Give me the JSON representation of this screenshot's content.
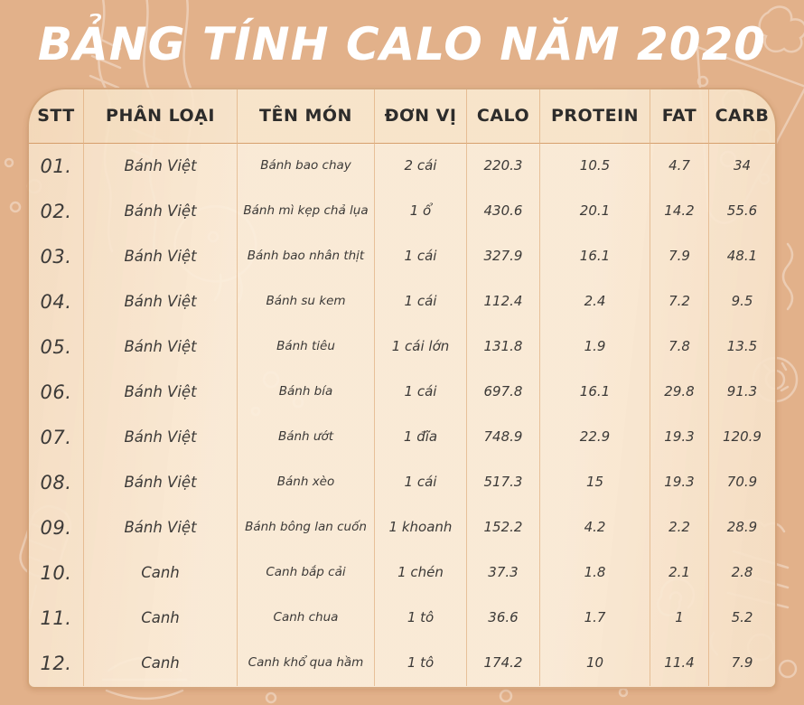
{
  "title": "BẢNG TÍNH CALO NĂM 2020",
  "colors": {
    "background": "#e2b18a",
    "panel": "#fbeeda",
    "panel_edge": "#f5dfc5",
    "panel_border": "#ba743e",
    "divider": "#d99e68",
    "title_text": "#ffffff",
    "header_text": "#2d2c2b",
    "body_text": "#3c3a38"
  },
  "table": {
    "columns": [
      "STT",
      "PHÂN LOẠI",
      "TÊN MÓN",
      "ĐƠN VỊ",
      "CALO",
      "PROTEIN",
      "FAT",
      "CARB"
    ],
    "rows": [
      [
        "01.",
        "Bánh Việt",
        "Bánh bao chay",
        "2 cái",
        "220.3",
        "10.5",
        "4.7",
        "34"
      ],
      [
        "02.",
        "Bánh Việt",
        "Bánh mì kẹp chả lụa",
        "1 ổ",
        "430.6",
        "20.1",
        "14.2",
        "55.6"
      ],
      [
        "03.",
        "Bánh Việt",
        "Bánh bao nhân thịt",
        "1 cái",
        "327.9",
        "16.1",
        "7.9",
        "48.1"
      ],
      [
        "04.",
        "Bánh Việt",
        "Bánh su kem",
        "1 cái",
        "112.4",
        "2.4",
        "7.2",
        "9.5"
      ],
      [
        "05.",
        "Bánh Việt",
        "Bánh tiêu",
        "1 cái lớn",
        "131.8",
        "1.9",
        "7.8",
        "13.5"
      ],
      [
        "06.",
        "Bánh Việt",
        "Bánh bía",
        "1 cái",
        "697.8",
        "16.1",
        "29.8",
        "91.3"
      ],
      [
        "07.",
        "Bánh Việt",
        "Bánh ướt",
        "1 đĩa",
        "748.9",
        "22.9",
        "19.3",
        "120.9"
      ],
      [
        "08.",
        "Bánh Việt",
        "Bánh xèo",
        "1 cái",
        "517.3",
        "15",
        "19.3",
        "70.9"
      ],
      [
        "09.",
        "Bánh Việt",
        "Bánh bông lan cuốn",
        "1 khoanh",
        "152.2",
        "4.2",
        "2.2",
        "28.9"
      ],
      [
        "10.",
        "Canh",
        "Canh bắp cải",
        "1 chén",
        "37.3",
        "1.8",
        "2.1",
        "2.8"
      ],
      [
        "11.",
        "Canh",
        "Canh chua",
        "1 tô",
        "36.6",
        "1.7",
        "1",
        "5.2"
      ],
      [
        "12.",
        "Canh",
        "Canh khổ qua hầm",
        "1 tô",
        "174.2",
        "10",
        "11.4",
        "7.9"
      ]
    ],
    "column_keys": [
      "stt",
      "category",
      "dish",
      "unit",
      "calo",
      "protein",
      "fat",
      "carb"
    ]
  }
}
